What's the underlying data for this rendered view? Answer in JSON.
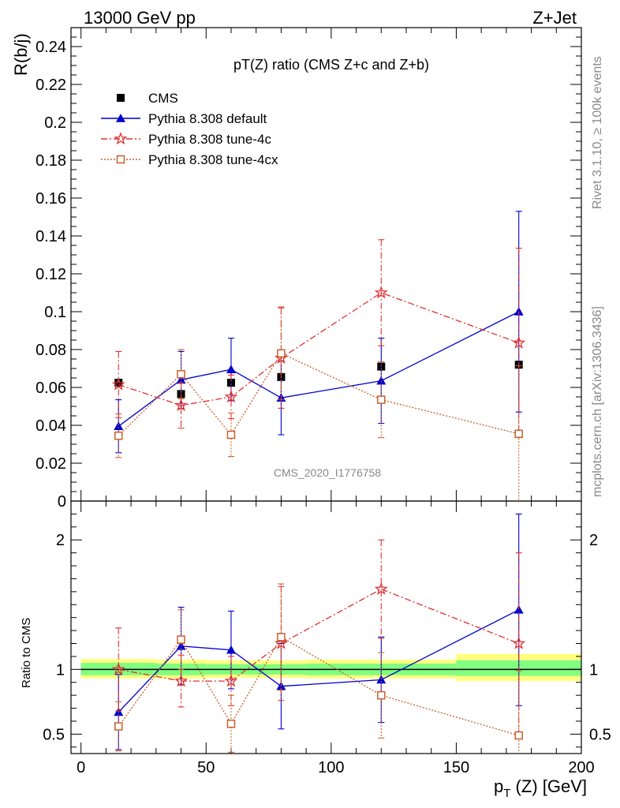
{
  "header": {
    "left": "13000 GeV pp",
    "right": "Z+Jet"
  },
  "side": {
    "rivet": "Rivet 3.1.10, ≥ 100k events",
    "mcplots": "mcplots.cern.ch [arXiv:1306.3436]"
  },
  "colors": {
    "cms": "#000000",
    "default": "#0000cc",
    "tune4c": "#e03030",
    "tune4cx": "#c8602a",
    "band_inner": "#80ff80",
    "band_outer": "#ffff80"
  },
  "chart_data": [
    {
      "type": "scatter",
      "title": "pT(Z) ratio (CMS  Z+c and Z+b)",
      "ylabel": "R(b/j)",
      "xlabel": "",
      "watermark": "CMS_2020_I1776758",
      "xlim": [
        -4,
        200
      ],
      "ylim": [
        0,
        0.25
      ],
      "yticks": [
        0,
        0.02,
        0.04,
        0.06,
        0.08,
        0.1,
        0.12,
        0.14,
        0.16,
        0.18,
        0.2,
        0.22,
        0.24
      ],
      "ytick_labels": [
        "0",
        "0.02",
        "0.04",
        "0.06",
        "0.08",
        "0.1",
        "0.12",
        "0.14",
        "0.16",
        "0.18",
        "0.2",
        "0.22",
        "0.24"
      ],
      "x": [
        15,
        40,
        60,
        80,
        120,
        175
      ],
      "series": [
        {
          "name": "CMS",
          "style": "data",
          "y": [
            0.0625,
            0.0565,
            0.0625,
            0.0655,
            0.071,
            0.072
          ]
        },
        {
          "name": "Pythia 8.308 default",
          "style": "default",
          "y": [
            0.0395,
            0.064,
            0.0695,
            0.0545,
            0.0635,
            0.1
          ],
          "err": [
            0.014,
            0.015,
            0.0165,
            0.0195,
            0.0225,
            0.053
          ]
        },
        {
          "name": "Pythia 8.308 tune-4c",
          "style": "tune4c",
          "y": [
            0.0615,
            0.0505,
            0.055,
            0.0755,
            0.11,
            0.0835
          ],
          "err": [
            0.0175,
            0.012,
            0.0115,
            0.0265,
            0.028,
            0.05
          ]
        },
        {
          "name": "Pythia 8.308 tune-4cx",
          "style": "tune4cx",
          "y": [
            0.0345,
            0.067,
            0.035,
            0.078,
            0.0535,
            0.0355
          ],
          "err": [
            0.0115,
            0.013,
            0.0115,
            0.0245,
            0.02,
            0.036
          ]
        }
      ]
    },
    {
      "type": "scatter",
      "title": "",
      "ylabel": "Ratio to CMS",
      "xlabel": "p_T (Z) [GeV]",
      "xlim": [
        -4,
        200
      ],
      "ylim": [
        0.35,
        2.3
      ],
      "yticks": [
        0.5,
        1,
        2
      ],
      "ytick_labels": [
        "0.5",
        "1",
        "2"
      ],
      "xticks": [
        0,
        50,
        100,
        150,
        200
      ],
      "xtick_labels": [
        "0",
        "50",
        "100",
        "150",
        "200"
      ],
      "x": [
        15,
        40,
        60,
        80,
        120,
        175
      ],
      "bands": [
        {
          "x0": 0,
          "x1": 30,
          "inner": [
            0.955,
            1.05
          ],
          "outer": [
            0.93,
            1.08
          ]
        },
        {
          "x0": 30,
          "x1": 50,
          "inner": [
            0.955,
            1.045
          ],
          "outer": [
            0.93,
            1.075
          ]
        },
        {
          "x0": 50,
          "x1": 70,
          "inner": [
            0.96,
            1.04
          ],
          "outer": [
            0.935,
            1.07
          ]
        },
        {
          "x0": 70,
          "x1": 90,
          "inner": [
            0.96,
            1.04
          ],
          "outer": [
            0.935,
            1.07
          ]
        },
        {
          "x0": 90,
          "x1": 150,
          "inner": [
            0.955,
            1.045
          ],
          "outer": [
            0.93,
            1.075
          ]
        },
        {
          "x0": 150,
          "x1": 200,
          "inner": [
            0.95,
            1.07
          ],
          "outer": [
            0.91,
            1.12
          ]
        }
      ],
      "series": [
        {
          "name": "Pythia 8.308 default",
          "style": "default",
          "y": [
            0.67,
            1.18,
            1.15,
            0.87,
            0.92,
            1.46
          ],
          "err": [
            0.29,
            0.3,
            0.3,
            0.33,
            0.33,
            0.74
          ]
        },
        {
          "name": "Pythia 8.308 tune-4c",
          "style": "tune4c",
          "y": [
            1.0,
            0.91,
            0.91,
            1.2,
            1.62,
            1.2
          ],
          "err": [
            0.32,
            0.2,
            0.19,
            0.44,
            0.38,
            0.7
          ]
        },
        {
          "name": "Pythia 8.308 tune-4cx",
          "style": "tune4cx",
          "y": [
            0.56,
            1.23,
            0.58,
            1.25,
            0.8,
            0.49
          ],
          "err": [
            0.19,
            0.23,
            0.22,
            0.41,
            0.33,
            0.5
          ]
        }
      ]
    }
  ]
}
